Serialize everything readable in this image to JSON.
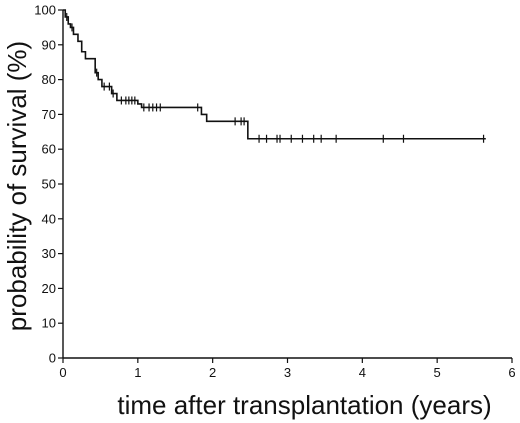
{
  "chart_data": {
    "type": "line",
    "title": "",
    "xlabel": "time after transplantation (years)",
    "ylabel": "probability of survival (%)",
    "xlim": [
      0,
      6
    ],
    "ylim": [
      0,
      100
    ],
    "xticks": [
      0,
      1,
      2,
      3,
      4,
      5,
      6
    ],
    "yticks": [
      0,
      10,
      20,
      30,
      40,
      50,
      60,
      70,
      80,
      90,
      100
    ],
    "grid": false,
    "legend": "none",
    "series": [
      {
        "line_style": "step",
        "color": "#111111",
        "steps": [
          {
            "x": 0.0,
            "y": 100
          },
          {
            "x": 0.03,
            "y": 98
          },
          {
            "x": 0.07,
            "y": 96
          },
          {
            "x": 0.1,
            "y": 95
          },
          {
            "x": 0.14,
            "y": 93
          },
          {
            "x": 0.2,
            "y": 91
          },
          {
            "x": 0.25,
            "y": 88
          },
          {
            "x": 0.3,
            "y": 86
          },
          {
            "x": 0.43,
            "y": 82
          },
          {
            "x": 0.47,
            "y": 80
          },
          {
            "x": 0.52,
            "y": 78
          },
          {
            "x": 0.65,
            "y": 76
          },
          {
            "x": 0.72,
            "y": 74
          },
          {
            "x": 1.0,
            "y": 73
          },
          {
            "x": 1.05,
            "y": 72
          },
          {
            "x": 1.85,
            "y": 70
          },
          {
            "x": 1.92,
            "y": 68
          },
          {
            "x": 2.47,
            "y": 63
          }
        ],
        "end_x": 5.65,
        "censored": [
          {
            "x": 0.05,
            "y": 98
          },
          {
            "x": 0.12,
            "y": 95
          },
          {
            "x": 0.45,
            "y": 82
          },
          {
            "x": 0.55,
            "y": 78
          },
          {
            "x": 0.62,
            "y": 78
          },
          {
            "x": 0.67,
            "y": 76
          },
          {
            "x": 0.78,
            "y": 74
          },
          {
            "x": 0.84,
            "y": 74
          },
          {
            "x": 0.88,
            "y": 74
          },
          {
            "x": 0.92,
            "y": 74
          },
          {
            "x": 0.96,
            "y": 74
          },
          {
            "x": 1.08,
            "y": 72
          },
          {
            "x": 1.15,
            "y": 72
          },
          {
            "x": 1.2,
            "y": 72
          },
          {
            "x": 1.25,
            "y": 72
          },
          {
            "x": 1.3,
            "y": 72
          },
          {
            "x": 1.8,
            "y": 72
          },
          {
            "x": 2.3,
            "y": 68
          },
          {
            "x": 2.38,
            "y": 68
          },
          {
            "x": 2.42,
            "y": 68
          },
          {
            "x": 2.62,
            "y": 63
          },
          {
            "x": 2.72,
            "y": 63
          },
          {
            "x": 2.86,
            "y": 63
          },
          {
            "x": 2.9,
            "y": 63
          },
          {
            "x": 3.05,
            "y": 63
          },
          {
            "x": 3.2,
            "y": 63
          },
          {
            "x": 3.35,
            "y": 63
          },
          {
            "x": 3.45,
            "y": 63
          },
          {
            "x": 3.65,
            "y": 63
          },
          {
            "x": 4.28,
            "y": 63
          },
          {
            "x": 4.55,
            "y": 63
          },
          {
            "x": 5.62,
            "y": 63
          }
        ]
      }
    ]
  }
}
